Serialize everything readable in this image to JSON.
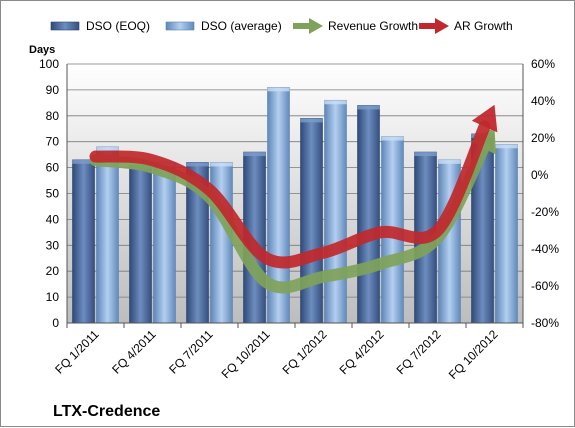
{
  "chart_data": {
    "type": "bar",
    "title": "LTX-Credence",
    "ylabel": "Days",
    "ylim": [
      0,
      100
    ],
    "y2lim": [
      -80,
      60
    ],
    "yticks": [
      "0",
      "10",
      "20",
      "30",
      "40",
      "50",
      "60",
      "70",
      "80",
      "90",
      "100"
    ],
    "y2ticks": [
      "-80%",
      "-60%",
      "-40%",
      "-20%",
      "0%",
      "20%",
      "40%",
      "60%"
    ],
    "categories": [
      "FQ 1/2011",
      "FQ 4/2011",
      "FQ 7/2011",
      "FQ 10/2011",
      "FQ 1/2012",
      "FQ 4/2012",
      "FQ 7/2012",
      "FQ 10/2012"
    ],
    "series": [
      {
        "name": "DSO (EOQ)",
        "type": "bar",
        "axis": "left",
        "color": "#4f6c9c",
        "values": [
          63,
          61,
          62,
          66,
          79,
          84,
          66,
          73
        ]
      },
      {
        "name": "DSO (average)",
        "type": "bar",
        "axis": "left",
        "color": "#8fb2de",
        "values": [
          68,
          62,
          62,
          91,
          86,
          72,
          63,
          69
        ]
      },
      {
        "name": "Revenue Growth",
        "type": "line",
        "axis": "right",
        "color": "#7fa35a",
        "values": [
          8,
          4,
          -12,
          -58,
          -55,
          -48,
          -34,
          26
        ]
      },
      {
        "name": "AR Growth",
        "type": "line",
        "axis": "right",
        "color": "#c0282d",
        "values": [
          10,
          8,
          -8,
          -45,
          -42,
          -31,
          -30,
          38
        ]
      }
    ],
    "grid": true,
    "legend": "top"
  }
}
